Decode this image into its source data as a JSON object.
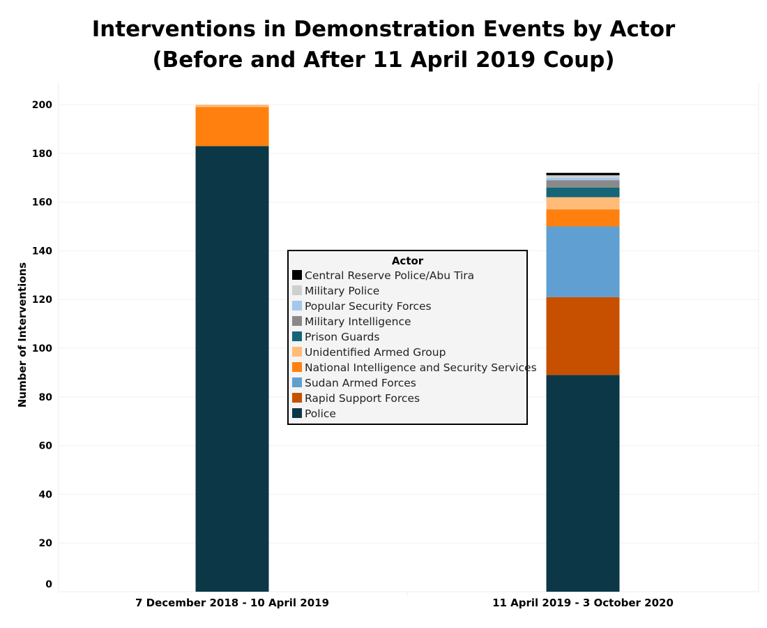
{
  "chart_data": {
    "type": "bar",
    "stacked": true,
    "title": [
      "Interventions in Demonstration Events by Actor",
      "(Before and After 11 April 2019 Coup)"
    ],
    "xlabel": "",
    "ylabel": "Number of Interventions",
    "ylim": [
      0,
      200
    ],
    "yticks": [
      0,
      20,
      40,
      60,
      80,
      100,
      120,
      140,
      160,
      180,
      200
    ],
    "grid": true,
    "categories": [
      "7 December 2018 - 10 April 2019",
      "11 April 2019 - 3 October 2020"
    ],
    "legend": {
      "title": "Actor",
      "placement": "center"
    },
    "series": [
      {
        "name": "Police",
        "color": "#0b3747",
        "values": [
          183,
          89
        ]
      },
      {
        "name": "Rapid Support Forces",
        "color": "#c75000",
        "values": [
          0,
          32
        ]
      },
      {
        "name": "Sudan Armed Forces",
        "color": "#5f9fd1",
        "values": [
          0,
          29
        ]
      },
      {
        "name": "National Intelligence and Security Services",
        "color": "#ff800e",
        "values": [
          16,
          7
        ]
      },
      {
        "name": "Unidentified Armed Group",
        "color": "#ffbc79",
        "values": [
          1,
          5
        ]
      },
      {
        "name": "Prison Guards",
        "color": "#146677",
        "values": [
          0,
          4
        ]
      },
      {
        "name": "Military Intelligence",
        "color": "#898989",
        "values": [
          0,
          3
        ]
      },
      {
        "name": "Popular Security Forces",
        "color": "#a3c8ec",
        "values": [
          0,
          1
        ]
      },
      {
        "name": "Military Police",
        "color": "#cfcfcf",
        "values": [
          0,
          1
        ]
      },
      {
        "name": "Central Reserve Police/Abu Tira",
        "color": "#000000",
        "values": [
          0,
          1
        ]
      }
    ]
  }
}
